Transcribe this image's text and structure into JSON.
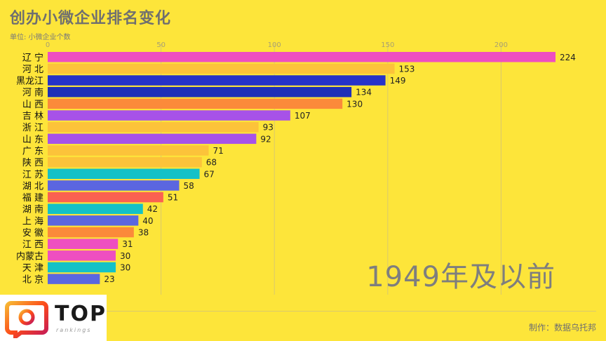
{
  "header": {
    "title": "创办小微企业排名变化",
    "unit": "单位: 小微企业个数"
  },
  "period_label": "1949年及以前",
  "credit": "制作：数据乌托邦",
  "logo": {
    "name": "TOP",
    "subtitle": "rankings"
  },
  "colors": {
    "background": "#fde53a",
    "grid": "#d9c96e",
    "tick": "#a8a070"
  },
  "chart_data": {
    "type": "bar",
    "orientation": "horizontal",
    "title": "创办小微企业排名变化",
    "subtitle": "单位: 小微企业个数",
    "xlim": [
      0,
      224
    ],
    "xticks": [
      0,
      50,
      100,
      150,
      200
    ],
    "grid": true,
    "categories": [
      "辽 宁",
      "河 北",
      "黑龙江",
      "河 南",
      "山 西",
      "吉 林",
      "浙 江",
      "山 东",
      "广 东",
      "陕 西",
      "江 苏",
      "湖 北",
      "福 建",
      "湖 南",
      "上 海",
      "安 徽",
      "江 西",
      "内蒙古",
      "天 津",
      "北 京"
    ],
    "values": [
      224,
      153,
      149,
      134,
      130,
      107,
      93,
      92,
      71,
      68,
      67,
      58,
      51,
      42,
      40,
      38,
      31,
      30,
      30,
      23
    ],
    "bar_colors": [
      "#ee4fc0",
      "#fcc33a",
      "#2632c9",
      "#1e2fb8",
      "#fb8a3a",
      "#a752e8",
      "#fcc33a",
      "#a752e8",
      "#fcc33a",
      "#fcc33a",
      "#14c1c7",
      "#5b66e0",
      "#fb6151",
      "#14c1c7",
      "#5b66e0",
      "#fb8a3a",
      "#ee4fc0",
      "#ee4fc0",
      "#14c1c7",
      "#5b66e0"
    ]
  }
}
